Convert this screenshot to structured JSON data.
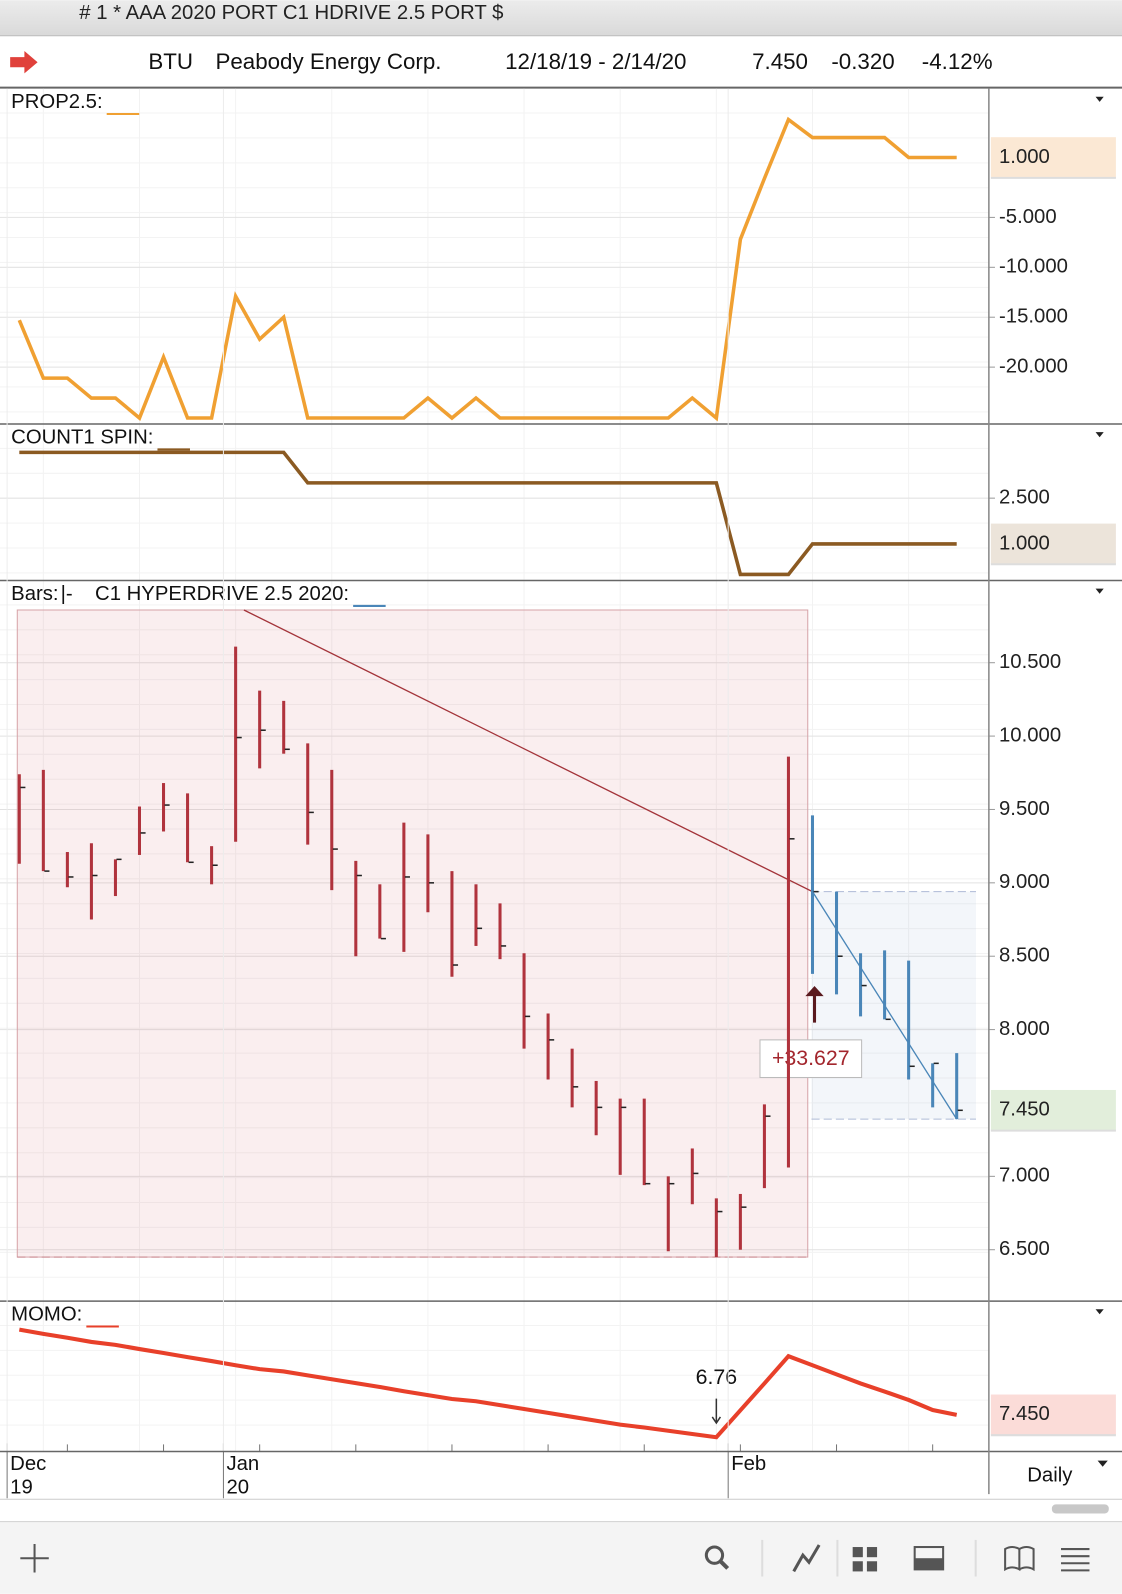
{
  "window": {
    "title": "# 1 * AAA 2020 PORT C1 HDRIVE 2.5 PORT $"
  },
  "quote": {
    "symbol": "BTU",
    "name": "Peabody Energy Corp.",
    "date_range": "12/18/19 - 2/14/20",
    "last": "7.450",
    "change": "-0.320",
    "change_pct": "-4.12%"
  },
  "footer": {
    "interval": "Daily"
  },
  "chart_data": [
    {
      "type": "line",
      "ylim": [
        -25.7,
        7.9
      ],
      "yticks": [
        {
          "value": -5,
          "label": "-5.000"
        },
        {
          "value": -10,
          "label": "-10.000"
        },
        {
          "value": -15,
          "label": "-15.000"
        },
        {
          "value": -20,
          "label": "-20.000"
        }
      ],
      "series": [
        {
          "name": "PROP2.5:",
          "color": "#f0a032",
          "values": [
            -15.3,
            -21.1,
            -21.1,
            -23.1,
            -23.1,
            -25.1,
            -19.0,
            -25.1,
            -25.1,
            -12.9,
            -17.2,
            -15.0,
            -25.1,
            -25.1,
            -25.1,
            -25.1,
            -25.1,
            -23.1,
            -25.1,
            -23.1,
            -25.1,
            -25.1,
            -25.1,
            -25.1,
            -25.1,
            -25.1,
            -25.1,
            -25.1,
            -23.1,
            -25.1,
            -7.2,
            -1.1,
            4.8,
            3.0,
            3.0,
            3.0,
            3.0,
            1.0,
            1.0,
            1.0
          ],
          "value_labels": [
            null,
            null,
            null,
            null,
            null,
            null,
            null,
            null,
            null,
            null,
            null,
            null,
            null,
            null,
            null,
            null,
            null,
            null,
            null,
            null,
            null,
            null,
            null,
            null,
            null,
            null,
            null,
            null,
            null,
            null,
            null,
            null,
            null,
            null,
            null,
            null,
            null,
            null,
            null,
            "1.000"
          ],
          "label_box": "#fbe8d4",
          "label_color": "#a8641c"
        }
      ]
    },
    {
      "type": "line",
      "ylim": [
        -0.2,
        4.93
      ],
      "yticks": [
        {
          "value": 2.5,
          "label": "2.500"
        }
      ],
      "series": [
        {
          "name": "COUNT1 SPIN:",
          "color": "#8b5a22",
          "values": [
            4,
            4,
            4,
            4,
            4,
            4,
            4,
            4,
            4,
            4,
            4,
            4,
            3,
            3,
            3,
            3,
            3,
            3,
            3,
            3,
            3,
            3,
            3,
            3,
            3,
            3,
            3,
            3,
            3,
            3,
            0,
            0,
            0,
            1,
            1,
            1,
            1,
            1,
            1,
            1
          ],
          "value_labels": [
            null,
            null,
            null,
            null,
            null,
            null,
            null,
            null,
            null,
            null,
            null,
            null,
            null,
            null,
            null,
            null,
            null,
            null,
            null,
            null,
            null,
            null,
            null,
            null,
            null,
            null,
            null,
            null,
            null,
            null,
            null,
            null,
            null,
            null,
            null,
            null,
            null,
            null,
            null,
            "1.000"
          ],
          "label_box": "#ece4da",
          "label_color": "#6b4a2a"
        }
      ]
    },
    {
      "type": "ohlc",
      "ylim": [
        6.15,
        11.06
      ],
      "yticks": [
        {
          "value": 6.5,
          "label": "6.500"
        },
        {
          "value": 7,
          "label": "7.000"
        },
        {
          "value": 8,
          "label": "8.000"
        },
        {
          "value": 8.5,
          "label": "8.500"
        },
        {
          "value": 9,
          "label": "9.000"
        },
        {
          "value": 9.5,
          "label": "9.500"
        },
        {
          "value": 10,
          "label": "10.000"
        },
        {
          "value": 10.5,
          "label": "10.500"
        }
      ],
      "annotations": [
        {
          "text": "+33.627"
        }
      ],
      "series": [
        {
          "name": "Bars:",
          "symbol": "|-",
          "color": "#b0333d",
          "high": [
            9.74,
            9.77,
            9.21,
            9.27,
            9.16,
            9.52,
            9.68,
            9.61,
            9.25,
            10.61,
            10.31,
            10.24,
            9.95,
            9.77,
            9.15,
            8.99,
            9.41,
            9.33,
            9.08,
            8.99,
            8.86,
            8.52,
            8.11,
            7.87,
            7.65,
            7.53,
            7.53,
            7.0,
            7.19,
            6.85,
            6.88,
            7.49,
            9.86,
            null,
            null,
            null,
            null,
            null,
            null,
            null
          ],
          "low": [
            9.13,
            9.08,
            8.97,
            8.75,
            8.91,
            9.19,
            9.35,
            9.14,
            8.99,
            9.28,
            9.78,
            9.88,
            9.26,
            8.95,
            8.5,
            8.62,
            8.53,
            8.8,
            8.36,
            8.57,
            8.48,
            7.87,
            7.66,
            7.47,
            7.28,
            7.01,
            6.94,
            6.49,
            6.81,
            6.45,
            6.5,
            6.92,
            7.06,
            null,
            null,
            null,
            null,
            null,
            null,
            null
          ],
          "close": [
            9.65,
            9.08,
            9.04,
            9.05,
            9.16,
            9.34,
            9.53,
            9.14,
            9.12,
            9.99,
            10.04,
            9.91,
            9.48,
            9.23,
            9.05,
            8.62,
            9.04,
            9.0,
            8.44,
            8.69,
            8.57,
            8.09,
            7.93,
            7.61,
            7.47,
            7.47,
            6.95,
            6.95,
            7.02,
            6.76,
            6.79,
            7.41,
            9.3,
            null,
            null,
            null,
            null,
            null,
            null,
            null
          ]
        },
        {
          "name": "C1 HYPERDRIVE 2.5 2020:",
          "color": "#4a86b8",
          "high": [
            null,
            null,
            null,
            null,
            null,
            null,
            null,
            null,
            null,
            null,
            null,
            null,
            null,
            null,
            null,
            null,
            null,
            null,
            null,
            null,
            null,
            null,
            null,
            null,
            null,
            null,
            null,
            null,
            null,
            null,
            null,
            null,
            null,
            9.46,
            8.94,
            8.52,
            8.54,
            8.47,
            7.77,
            7.84
          ],
          "low": [
            null,
            null,
            null,
            null,
            null,
            null,
            null,
            null,
            null,
            null,
            null,
            null,
            null,
            null,
            null,
            null,
            null,
            null,
            null,
            null,
            null,
            null,
            null,
            null,
            null,
            null,
            null,
            null,
            null,
            null,
            null,
            null,
            null,
            8.38,
            8.24,
            8.09,
            8.07,
            7.66,
            7.47,
            7.39
          ],
          "close": [
            null,
            null,
            null,
            null,
            null,
            null,
            null,
            null,
            null,
            null,
            null,
            null,
            null,
            null,
            null,
            null,
            null,
            null,
            null,
            null,
            null,
            null,
            null,
            null,
            null,
            null,
            null,
            null,
            null,
            null,
            null,
            null,
            null,
            8.94,
            8.5,
            8.3,
            8.07,
            7.75,
            7.77,
            7.45
          ],
          "value_labels": [
            null,
            null,
            null,
            null,
            null,
            null,
            null,
            null,
            null,
            null,
            null,
            null,
            null,
            null,
            null,
            null,
            null,
            null,
            null,
            null,
            null,
            null,
            null,
            null,
            null,
            null,
            null,
            null,
            null,
            null,
            null,
            null,
            null,
            null,
            null,
            null,
            null,
            null,
            null,
            "7.450"
          ],
          "label_box": "#e2eedb",
          "label_color": "#467a2c"
        }
      ]
    },
    {
      "type": "line",
      "ylim": [
        6.32,
        10.96
      ],
      "categories": [
        "Dec",
        null,
        null,
        null,
        null,
        null,
        null,
        null,
        null,
        "Jan",
        null,
        null,
        null,
        null,
        null,
        null,
        null,
        null,
        null,
        null,
        null,
        null,
        null,
        null,
        null,
        null,
        null,
        null,
        null,
        null,
        "Feb",
        null,
        null,
        null,
        null,
        null,
        null,
        null,
        null,
        null
      ],
      "category_years": [
        "19",
        null,
        null,
        null,
        null,
        null,
        null,
        null,
        null,
        "20",
        null,
        null,
        null,
        null,
        null,
        null,
        null,
        null,
        null,
        null,
        null,
        null,
        null,
        null,
        null,
        null,
        null,
        null,
        null,
        null,
        null,
        null,
        null,
        null,
        null,
        null,
        null,
        null,
        null,
        null
      ],
      "series": [
        {
          "name": "MOMO:",
          "color": "#e8402a",
          "width": 4,
          "values": [
            10.08,
            9.95,
            9.83,
            9.7,
            9.61,
            9.48,
            9.36,
            9.23,
            9.11,
            8.98,
            8.86,
            8.79,
            8.67,
            8.55,
            8.43,
            8.31,
            8.18,
            8.06,
            7.94,
            7.87,
            7.75,
            7.63,
            7.51,
            7.39,
            7.27,
            7.15,
            7.06,
            6.96,
            6.86,
            6.76,
            7.59,
            8.42,
            9.26,
            8.98,
            8.7,
            8.42,
            8.17,
            7.91,
            7.6,
            7.45
          ],
          "value_labels": [
            null,
            null,
            null,
            null,
            null,
            null,
            null,
            null,
            null,
            null,
            null,
            null,
            null,
            null,
            null,
            null,
            null,
            null,
            null,
            null,
            null,
            null,
            null,
            null,
            null,
            null,
            null,
            null,
            null,
            "6.76",
            null,
            null,
            null,
            null,
            null,
            null,
            null,
            null,
            null,
            "7.450"
          ],
          "label_box": "#fbdcd8",
          "label_color": "#c0392b"
        }
      ]
    }
  ]
}
